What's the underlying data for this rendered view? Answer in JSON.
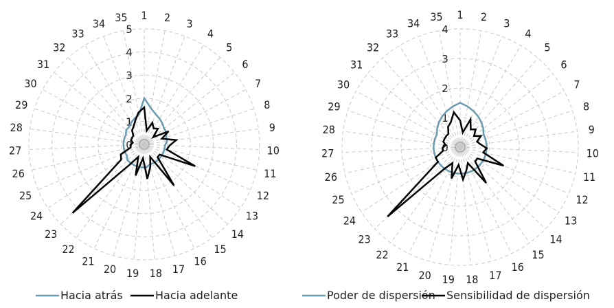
{
  "chart_data": [
    {
      "type": "radar",
      "title": "",
      "categories": [
        "1",
        "2",
        "3",
        "4",
        "5",
        "6",
        "7",
        "8",
        "9",
        "10",
        "11",
        "12",
        "13",
        "14",
        "15",
        "16",
        "17",
        "18",
        "19",
        "20",
        "21",
        "22",
        "23",
        "24",
        "25",
        "26",
        "27",
        "28",
        "29",
        "30",
        "31",
        "32",
        "33",
        "34",
        "35"
      ],
      "radial_ticks": [
        "0",
        "1",
        "2",
        "3",
        "4",
        "5"
      ],
      "rmax": 5,
      "grid": true,
      "legend_position": "bottom",
      "series": [
        {
          "name": "Hacia atrás",
          "color": "#6a9bb0",
          "values": [
            2.0,
            1.6,
            1.4,
            1.3,
            1.2,
            1.1,
            1.1,
            1.0,
            1.0,
            0.9,
            0.9,
            0.9,
            0.9,
            0.9,
            0.9,
            0.9,
            0.9,
            1.0,
            1.0,
            1.0,
            1.0,
            1.0,
            1.0,
            0.9,
            0.9,
            0.9,
            0.9,
            0.9,
            0.9,
            0.9,
            1.0,
            1.0,
            1.1,
            1.2,
            1.3
          ]
        },
        {
          "name": "Hacia adelante",
          "color": "#000000",
          "values": [
            1.6,
            0.6,
            1.0,
            0.8,
            0.9,
            0.5,
            1.2,
            0.8,
            1.4,
            1.1,
            1.0,
            2.4,
            0.8,
            0.8,
            2.2,
            0.6,
            1.0,
            1.5,
            0.6,
            1.4,
            0.6,
            1.1,
            4.3,
            1.2,
            1.1,
            0.6,
            0.6,
            0.5,
            0.6,
            0.6,
            0.6,
            0.8,
            0.9,
            1.1,
            1.4
          ]
        }
      ]
    },
    {
      "type": "radar",
      "title": "",
      "categories": [
        "1",
        "2",
        "3",
        "4",
        "5",
        "6",
        "7",
        "8",
        "9",
        "10",
        "11",
        "12",
        "13",
        "14",
        "15",
        "16",
        "17",
        "18",
        "19",
        "20",
        "21",
        "22",
        "23",
        "24",
        "25",
        "26",
        "27",
        "28",
        "29",
        "30",
        "31",
        "32",
        "33",
        "34",
        "35"
      ],
      "radial_ticks": [
        "0",
        "1",
        "2",
        "3",
        "4"
      ],
      "rmax": 4,
      "grid": true,
      "legend_position": "bottom",
      "series": [
        {
          "name": "Poder de dispersión",
          "color": "#6a9bb0",
          "values": [
            1.5,
            1.4,
            1.3,
            1.2,
            1.1,
            1.0,
            0.9,
            0.9,
            0.9,
            0.9,
            0.9,
            0.9,
            0.9,
            0.9,
            0.9,
            0.9,
            0.9,
            0.9,
            0.9,
            0.9,
            0.9,
            0.9,
            0.9,
            0.9,
            0.9,
            0.9,
            0.9,
            0.9,
            0.9,
            0.9,
            1.0,
            1.1,
            1.2,
            1.3,
            1.4
          ]
        },
        {
          "name": "Sensibilidad de dispersión",
          "color": "#000000",
          "values": [
            0.9,
            0.5,
            1.0,
            0.7,
            0.8,
            0.6,
            0.8,
            0.6,
            0.7,
            0.9,
            0.8,
            1.6,
            0.7,
            0.7,
            1.5,
            0.6,
            0.8,
            1.1,
            0.6,
            1.1,
            0.6,
            0.9,
            3.4,
            0.9,
            0.9,
            0.6,
            0.6,
            0.5,
            0.6,
            0.6,
            0.6,
            0.6,
            0.8,
            0.9,
            1.2
          ]
        }
      ]
    }
  ]
}
